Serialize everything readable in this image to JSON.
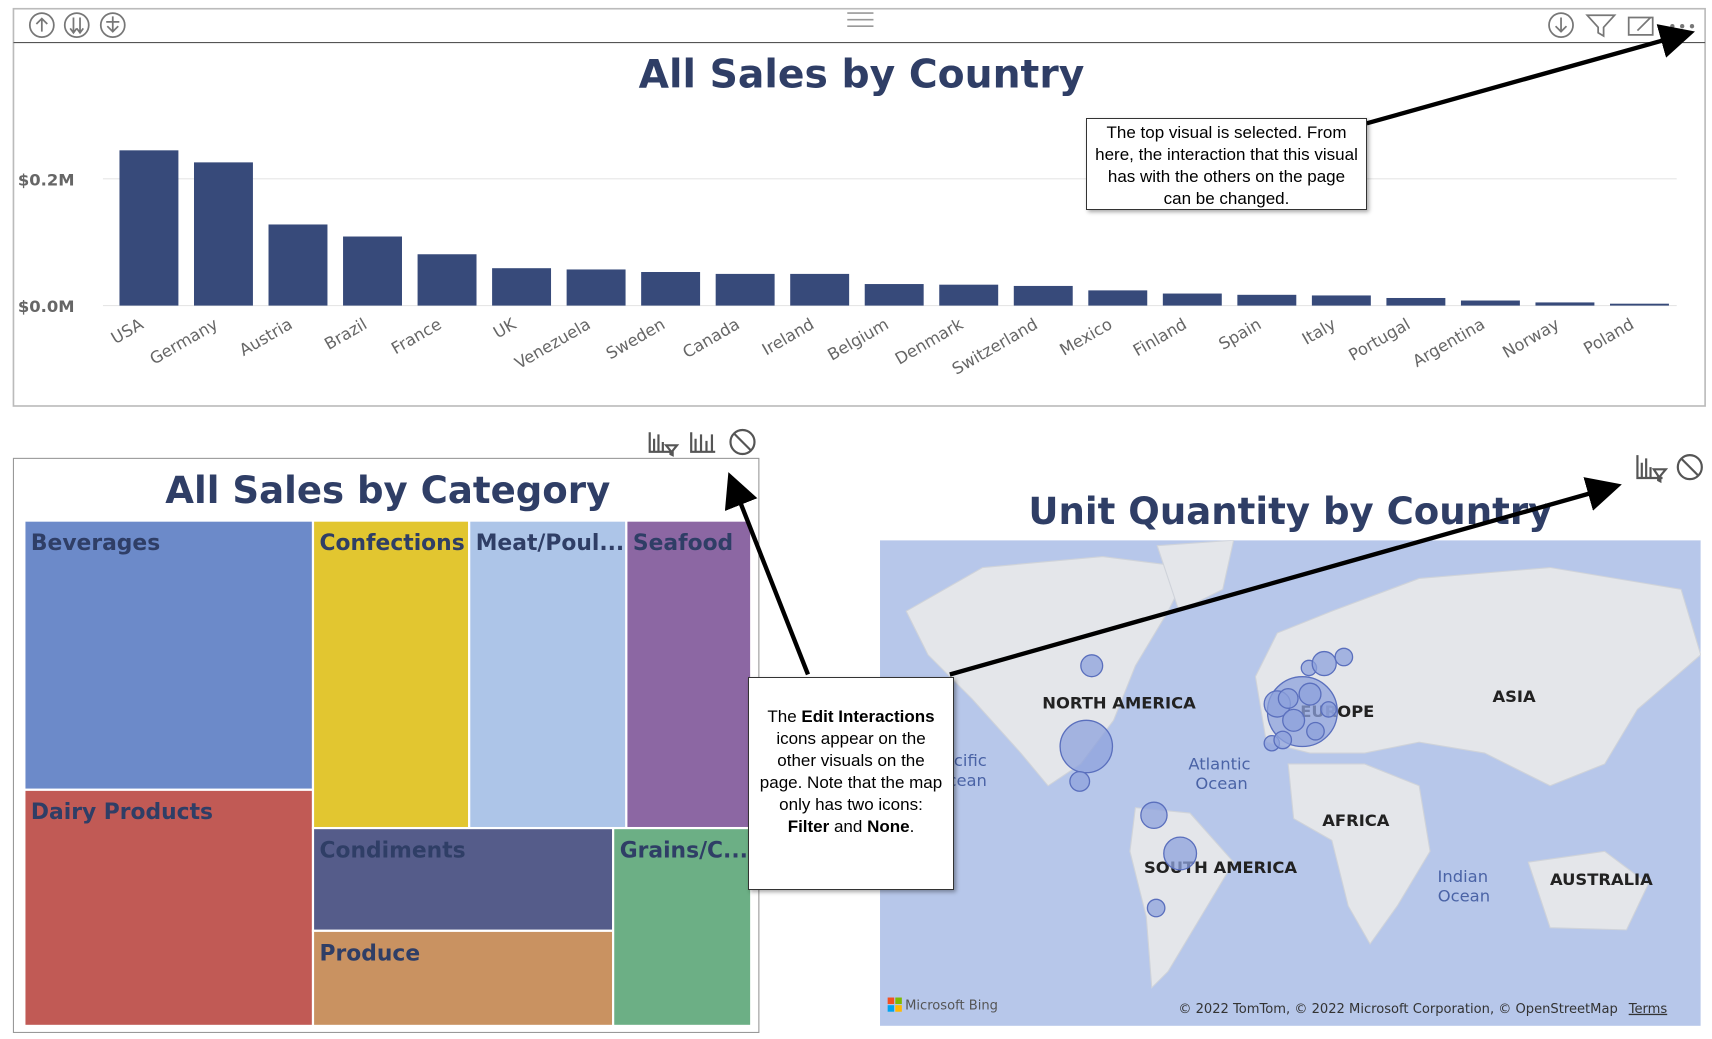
{
  "chart_data": [
    {
      "type": "bar",
      "title": "All Sales by Country",
      "categories": [
        "USA",
        "Germany",
        "Austria",
        "Brazil",
        "France",
        "UK",
        "Venezuela",
        "Sweden",
        "Canada",
        "Ireland",
        "Belgium",
        "Denmark",
        "Switzerland",
        "Mexico",
        "Finland",
        "Spain",
        "Italy",
        "Portugal",
        "Argentina",
        "Norway",
        "Poland"
      ],
      "values": [
        245000,
        226000,
        128000,
        109000,
        81000,
        59000,
        57000,
        53000,
        50000,
        50000,
        34000,
        33000,
        31000,
        24000,
        19000,
        17000,
        16000,
        12000,
        8000,
        5000,
        3000
      ],
      "color": "#374a7a",
      "ylim": [
        0,
        310000
      ],
      "yticks": [
        {
          "value": 0,
          "label": "$0.0M"
        },
        {
          "value": 200000,
          "label": "$0.2M"
        }
      ],
      "grid": true
    },
    {
      "type": "treemap",
      "title": "All Sales by Category",
      "categories": [
        "Beverages",
        "Dairy Products",
        "Confections",
        "Meat/Poul...",
        "Seafood",
        "Condiments",
        "Produce",
        "Grains/C..."
      ],
      "values": [
        286527,
        251331,
        177099,
        178188,
        141623,
        113694,
        105268,
        100727
      ],
      "colors": [
        "#6c8ac9",
        "#c15a55",
        "#e2c630",
        "#adc5e8",
        "#8c67a3",
        "#555c8a",
        "#c99261",
        "#6caf85"
      ]
    }
  ],
  "map": {
    "title": "Unit Quantity by Country",
    "labels": [
      "NORTH AMERICA",
      "EUROPE",
      "ASIA",
      "AFRICA",
      "SOUTH AMERICA",
      "AUSTRALIA"
    ],
    "oceans": [
      [
        "Pacific",
        "Ocean"
      ],
      [
        "Atlantic",
        "Ocean"
      ],
      [
        "Indian",
        "Ocean"
      ]
    ],
    "attribution": "Microsoft Bing",
    "copyright": "© 2022 TomTom, © 2022 Microsoft Corporation, © OpenStreetMap",
    "terms": "Terms"
  },
  "callouts": [
    {
      "text": "The top visual is selected. From here, the interaction that this visual has with the others on the page can be changed."
    },
    {
      "parts": [
        "The ",
        "Edit Interactions",
        " icons appear on the other visuals on the page. Note that the map only has two icons: ",
        "Filter",
        " and ",
        "None",
        "."
      ]
    }
  ]
}
